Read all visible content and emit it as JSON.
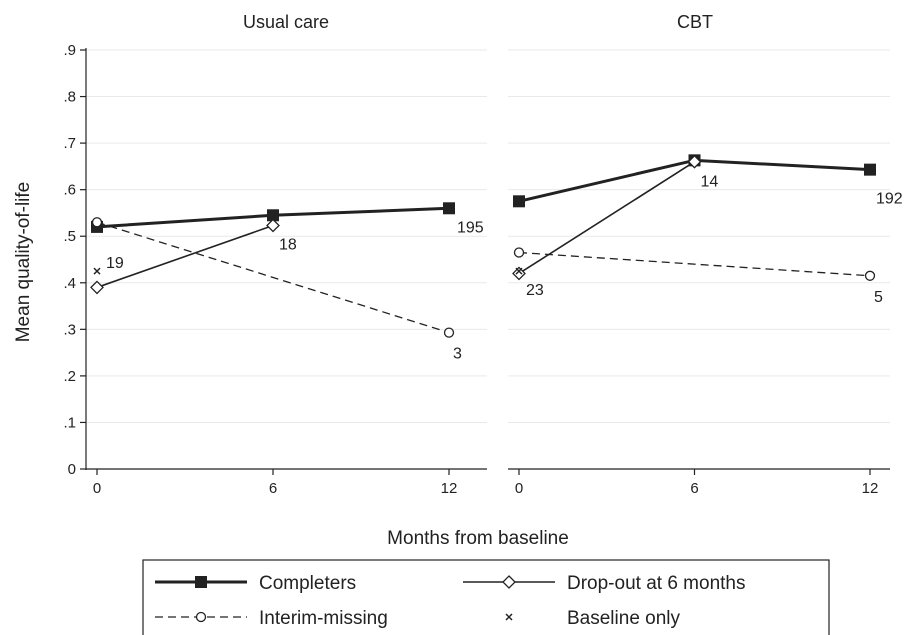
{
  "chart_data": {
    "type": "line",
    "ylabel": "Mean quality-of-life",
    "xlabel": "Months from baseline",
    "ylim": [
      0,
      0.9
    ],
    "yticks": [
      0,
      0.1,
      0.2,
      0.3,
      0.4,
      0.5,
      0.6,
      0.7,
      0.8,
      0.9
    ],
    "ytick_labels": [
      "0",
      ".1",
      ".2",
      ".3",
      ".4",
      ".5",
      ".6",
      ".7",
      ".8",
      ".9"
    ],
    "xlim": [
      0,
      12
    ],
    "xticks": [
      0,
      6,
      12
    ],
    "xtick_labels": [
      "0",
      "6",
      "12"
    ],
    "grid": true,
    "legend_position": "bottom",
    "panels": [
      {
        "title": "Usual care",
        "series": [
          {
            "name": "Completers",
            "style": "solid-thick",
            "marker": "square",
            "x": [
              0,
              6,
              12
            ],
            "y": [
              0.52,
              0.545,
              0.56
            ],
            "labels": [
              null,
              null,
              "195"
            ]
          },
          {
            "name": "Drop-out at 6 months",
            "style": "solid-thin",
            "marker": "diamond",
            "x": [
              0,
              6
            ],
            "y": [
              0.39,
              0.523
            ],
            "labels": [
              null,
              "18"
            ]
          },
          {
            "name": "Interim-missing",
            "style": "dashed",
            "marker": "circle",
            "x": [
              0,
              12
            ],
            "y": [
              0.53,
              0.293
            ],
            "labels": [
              null,
              "3"
            ]
          },
          {
            "name": "Baseline only",
            "style": "none",
            "marker": "x",
            "x": [
              0
            ],
            "y": [
              0.425
            ],
            "labels": [
              "19"
            ]
          }
        ]
      },
      {
        "title": "CBT",
        "series": [
          {
            "name": "Completers",
            "style": "solid-thick",
            "marker": "square",
            "x": [
              0,
              6,
              12
            ],
            "y": [
              0.575,
              0.663,
              0.643
            ],
            "labels": [
              null,
              null,
              "192"
            ]
          },
          {
            "name": "Drop-out at 6 months",
            "style": "solid-thin",
            "marker": "diamond",
            "x": [
              0,
              6
            ],
            "y": [
              0.42,
              0.66
            ],
            "labels": [
              null,
              "14"
            ]
          },
          {
            "name": "Interim-missing",
            "style": "dashed",
            "marker": "circle",
            "x": [
              0,
              12
            ],
            "y": [
              0.465,
              0.415
            ],
            "labels": [
              null,
              "5"
            ]
          },
          {
            "name": "Baseline only",
            "style": "none",
            "marker": "x",
            "x": [
              0
            ],
            "y": [
              0.425
            ],
            "labels": [
              "23"
            ]
          }
        ]
      }
    ],
    "legend": [
      {
        "name": "Completers",
        "style": "solid-thick",
        "marker": "square"
      },
      {
        "name": "Drop-out at 6 months",
        "style": "solid-thin",
        "marker": "diamond"
      },
      {
        "name": "Interim-missing",
        "style": "dashed",
        "marker": "circle"
      },
      {
        "name": "Baseline only",
        "style": "none",
        "marker": "x"
      }
    ]
  }
}
